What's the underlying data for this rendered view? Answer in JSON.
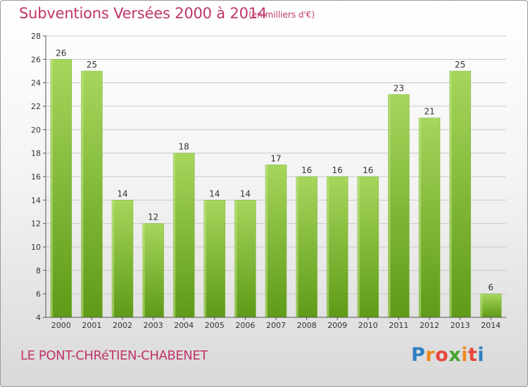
{
  "header": {
    "title": "Subventions Versées 2000 à 2014",
    "subtitle": "(en milliers d'€)"
  },
  "footer": {
    "commune": "LE PONT-CHRéTIEN-CHABENET",
    "logo_letters": [
      "P",
      "r",
      "o",
      "x",
      "i",
      "t",
      "i"
    ],
    "logo_colors": [
      "#2f7fc1",
      "#f08a1c",
      "#e8463c",
      "#45a32e",
      "#f08a1c",
      "#e8463c",
      "#2f7fc1"
    ]
  },
  "colors": {
    "bar_light": "#a6d65c",
    "bar_dark": "#5f9a18",
    "title": "#c0356b"
  },
  "chart_data": {
    "type": "bar",
    "title": "Subventions Versées 2000 à 2014",
    "subtitle": "(en milliers d'€)",
    "categories": [
      "2000",
      "2001",
      "2002",
      "2003",
      "2004",
      "2005",
      "2006",
      "2007",
      "2008",
      "2009",
      "2010",
      "2011",
      "2012",
      "2013",
      "2014"
    ],
    "values": [
      26,
      25,
      14,
      12,
      18,
      14,
      14,
      17,
      16,
      16,
      16,
      23,
      21,
      25,
      6
    ],
    "ylim": [
      4,
      28
    ],
    "yticks": [
      4,
      6,
      8,
      10,
      12,
      14,
      16,
      18,
      20,
      22,
      24,
      26,
      28
    ],
    "grid": true,
    "data_labels": true
  }
}
